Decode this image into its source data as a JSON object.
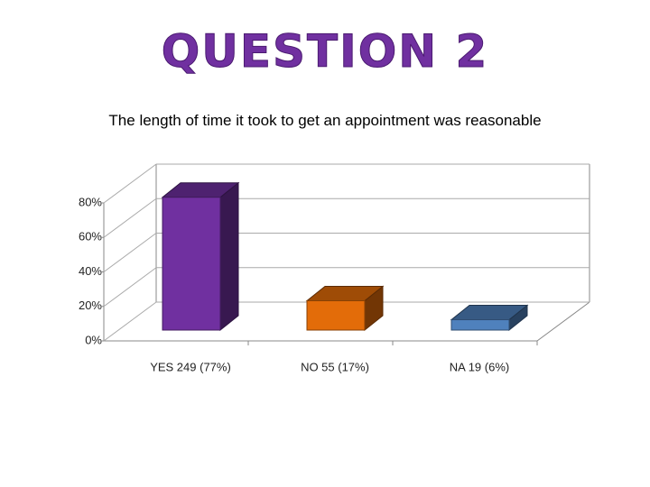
{
  "heading": "QUESTION 2",
  "chart_data": {
    "type": "bar3d",
    "title": "The length of time it took to get an appointment was reasonable",
    "categories": [
      "YES 249 (77%)",
      "NO 55 (17%)",
      "NA 19 (6%)"
    ],
    "values": [
      77,
      17,
      6
    ],
    "colors": [
      "#7030a0",
      "#e36c09",
      "#4f81bd"
    ],
    "ylim": [
      0,
      80
    ],
    "yticks": [
      {
        "value": 0,
        "label": "0%"
      },
      {
        "value": 20,
        "label": "20%"
      },
      {
        "value": 40,
        "label": "40%"
      },
      {
        "value": 60,
        "label": "60%"
      },
      {
        "value": 80,
        "label": "80%"
      }
    ],
    "grid": true
  }
}
